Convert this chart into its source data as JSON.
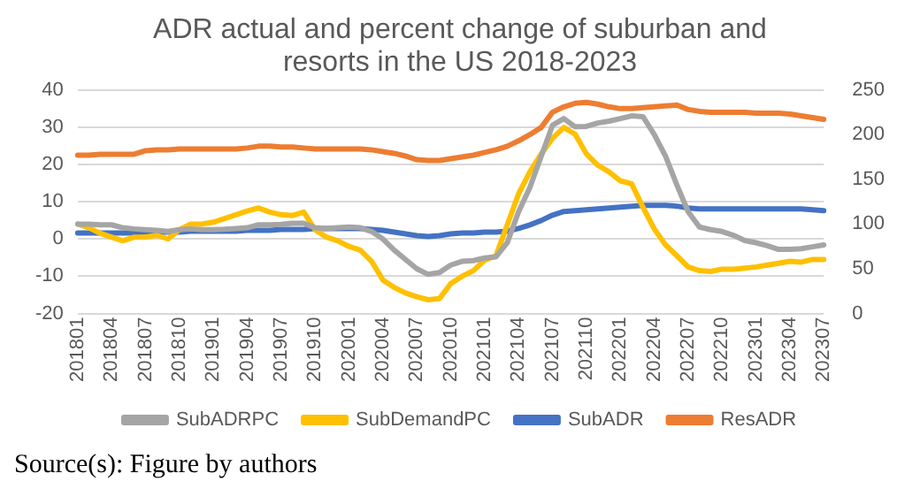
{
  "chart_data": {
    "type": "line",
    "title": "ADR actual and percent change of suburban and resorts in the US 2018-2023",
    "categories": [
      "201801",
      null,
      null,
      "201804",
      null,
      null,
      "201807",
      null,
      null,
      "201810",
      null,
      null,
      "201901",
      null,
      null,
      "201904",
      null,
      null,
      "201907",
      null,
      null,
      "201910",
      null,
      null,
      "202001",
      null,
      null,
      "202004",
      null,
      null,
      "202007",
      null,
      null,
      "202010",
      null,
      null,
      "202101",
      null,
      null,
      "202104",
      null,
      null,
      "202107",
      null,
      null,
      "202110",
      null,
      null,
      "202201",
      null,
      null,
      "202204",
      null,
      null,
      "202207",
      null,
      null,
      "202210",
      null,
      null,
      "202301",
      null,
      null,
      "202304",
      null,
      null,
      "202307"
    ],
    "series": [
      {
        "name": "SubADRPC",
        "color": "#a5a5a5",
        "values": [
          4,
          4,
          3.8,
          3.8,
          3,
          2.7,
          2.5,
          2.3,
          2,
          2.5,
          2.7,
          2.5,
          2.5,
          2.6,
          2.8,
          3,
          3.8,
          3.8,
          3.9,
          4.2,
          4.2,
          3,
          2.8,
          3,
          3.2,
          3,
          2,
          0,
          -3,
          -5.5,
          -8,
          -9.5,
          -9,
          -7,
          -6,
          -5.8,
          -5.1,
          -4.8,
          -1,
          7.3,
          13.8,
          22.2,
          30.5,
          32.3,
          30.1,
          30.2,
          31.1,
          31.6,
          32.3,
          33,
          32.8,
          28,
          22.2,
          14.5,
          7.3,
          3.2,
          2.5,
          2,
          1,
          -0.4,
          -1,
          -1.8,
          -2.8,
          -2.8,
          -2.6,
          -2.1,
          -1.6
        ]
      },
      {
        "name": "SubDemandPC",
        "color": "#ffc000",
        "values": [
          4,
          3,
          1.5,
          0.5,
          -0.5,
          0.5,
          0.5,
          1,
          0,
          2.5,
          4,
          4,
          4.5,
          5.5,
          6.5,
          7.5,
          8.3,
          7.2,
          6.5,
          6.3,
          7.2,
          2.5,
          0.5,
          -0.5,
          -2,
          -3,
          -6,
          -11,
          -13,
          -14.5,
          -15.5,
          -16.3,
          -16,
          -12,
          -10,
          -8.5,
          -5.7,
          -4.5,
          3.8,
          12.1,
          18,
          22.8,
          27,
          29.9,
          28.1,
          22.8,
          19.8,
          18,
          15.6,
          14.8,
          8.5,
          2.7,
          -1.6,
          -4.5,
          -7.5,
          -8.5,
          -8.7,
          -8.1,
          -8.1,
          -7.8,
          -7.5,
          -7,
          -6.5,
          -6,
          -6.2,
          -5.5,
          -5.5
        ]
      },
      {
        "name": "SubADR",
        "color": "#4472c4",
        "axis": "y2",
        "values": [
          90,
          90,
          90,
          90,
          90,
          90,
          91,
          91,
          91,
          91,
          92,
          92,
          92,
          92,
          92,
          93,
          93,
          93,
          94,
          94,
          94,
          95,
          95,
          95,
          95,
          95,
          94,
          93,
          91,
          89,
          87,
          86,
          87,
          89,
          90,
          90,
          91,
          91,
          92,
          95,
          99,
          104,
          110,
          114,
          115,
          116,
          117,
          118,
          119,
          120,
          121,
          121,
          121,
          120,
          118,
          117,
          117,
          117,
          117,
          117,
          117,
          117,
          117,
          117,
          117,
          116,
          115
        ]
      },
      {
        "name": "ResADR",
        "color": "#ed7d31",
        "axis": "y2",
        "values": [
          177,
          177,
          178,
          178,
          178,
          178,
          182,
          183,
          183,
          184,
          184,
          184,
          184,
          184,
          184,
          185,
          187,
          187,
          186,
          186,
          185,
          184,
          184,
          184,
          184,
          184,
          183,
          181,
          179,
          176,
          172,
          171,
          171,
          173,
          175,
          177,
          180,
          183,
          187,
          193,
          200,
          208,
          225,
          231,
          235,
          236,
          234,
          231,
          229,
          229,
          230,
          231,
          232,
          233,
          228,
          226,
          225,
          225,
          225,
          225,
          224,
          224,
          224,
          223,
          221,
          219,
          217
        ]
      }
    ],
    "ylim": [
      -20,
      40
    ],
    "yticks": [
      -20,
      -10,
      0,
      10,
      20,
      30,
      40
    ],
    "y2lim": [
      0,
      250
    ],
    "y2ticks": [
      0,
      50,
      100,
      150,
      200,
      250
    ],
    "grid": "y",
    "legend": "bottom",
    "marker": "none",
    "line_style": "solid",
    "annotations": [
      "Source(s): Figure by authors"
    ]
  }
}
